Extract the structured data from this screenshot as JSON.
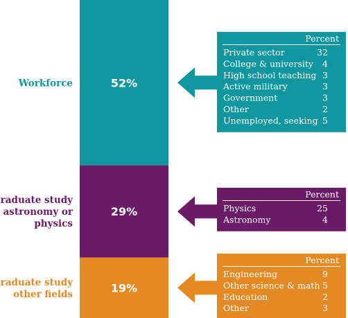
{
  "chart_data": {
    "type": "bar",
    "stacked": true,
    "title": "",
    "unit": "%",
    "series": [
      {
        "name": "Workforce",
        "value": 52,
        "display": "52%",
        "color": "#10969e",
        "breakdown_header": "Percent",
        "breakdown": [
          {
            "label": "Private sector",
            "value": 32
          },
          {
            "label": "College & university",
            "value": 4
          },
          {
            "label": "High school teaching",
            "value": 3
          },
          {
            "label": "Active military",
            "value": 3
          },
          {
            "label": "Government",
            "value": 3
          },
          {
            "label": "Other",
            "value": 2
          },
          {
            "label": "Unemployed, seeking",
            "value": 5
          }
        ]
      },
      {
        "name": "Graduate study astronomy or physics",
        "name_lines": [
          "Graduate study",
          "astronomy or",
          "physics"
        ],
        "value": 29,
        "display": "29%",
        "color": "#6b1a68",
        "breakdown_header": "Percent",
        "breakdown": [
          {
            "label": "Physics",
            "value": 25
          },
          {
            "label": "Astronomy",
            "value": 4
          }
        ]
      },
      {
        "name": "Graduate study other fields",
        "name_lines": [
          "Graduate study",
          "other fields"
        ],
        "value": 19,
        "display": "19%",
        "color": "#e48a24",
        "breakdown_header": "Percent",
        "breakdown": [
          {
            "label": "Engineering",
            "value": 9
          },
          {
            "label": "Other science & math",
            "value": 5
          },
          {
            "label": "Education",
            "value": 2
          },
          {
            "label": "Other",
            "value": 3
          }
        ]
      }
    ]
  }
}
